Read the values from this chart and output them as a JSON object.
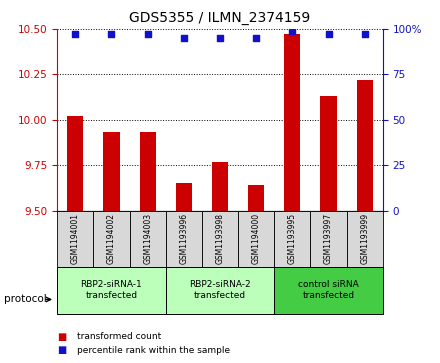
{
  "title": "GDS5355 / ILMN_2374159",
  "samples": [
    "GSM1194001",
    "GSM1194002",
    "GSM1194003",
    "GSM1193996",
    "GSM1193998",
    "GSM1194000",
    "GSM1193995",
    "GSM1193997",
    "GSM1193999"
  ],
  "transformed_counts": [
    10.02,
    9.93,
    9.93,
    9.65,
    9.77,
    9.64,
    10.47,
    10.13,
    10.22
  ],
  "percentile_ranks": [
    97,
    97,
    97,
    95,
    95,
    95,
    99,
    97,
    97
  ],
  "ylim_left": [
    9.5,
    10.5
  ],
  "ylim_right": [
    0,
    100
  ],
  "yticks_left": [
    9.5,
    9.75,
    10.0,
    10.25,
    10.5
  ],
  "yticks_right": [
    0,
    25,
    50,
    75,
    100
  ],
  "bar_color": "#cc0000",
  "dot_color": "#1111cc",
  "groups": [
    {
      "label": "RBP2-siRNA-1\ntransfected",
      "start": 0,
      "end": 3,
      "color": "#bbffbb"
    },
    {
      "label": "RBP2-siRNA-2\ntransfected",
      "start": 3,
      "end": 6,
      "color": "#bbffbb"
    },
    {
      "label": "control siRNA\ntransfected",
      "start": 6,
      "end": 9,
      "color": "#44cc44"
    }
  ],
  "protocol_label": "protocol",
  "legend_bar_label": "transformed count",
  "legend_dot_label": "percentile rank within the sample",
  "background_color": "#ffffff",
  "xticklabel_area_color": "#d8d8d8",
  "title_fontsize": 10,
  "tick_fontsize": 7.5,
  "bar_width": 0.45
}
